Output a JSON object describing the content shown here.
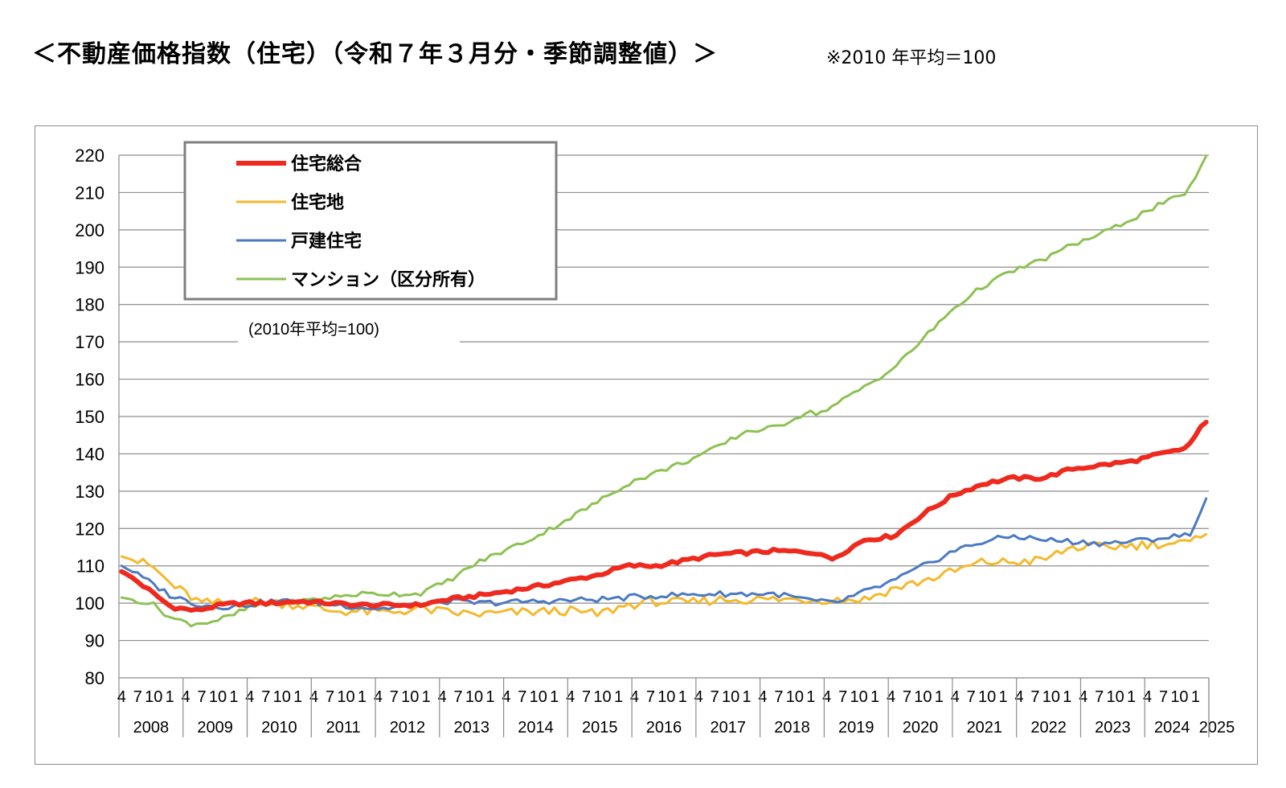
{
  "title": "＜不動産価格指数（住宅）（令和７年３月分・季節調整値）＞",
  "note": "※2010 年平均＝100",
  "chart_data": {
    "type": "line",
    "ylim": [
      80,
      220
    ],
    "yticks": [
      80,
      90,
      100,
      110,
      120,
      130,
      140,
      150,
      160,
      170,
      180,
      190,
      200,
      210,
      220
    ],
    "annotation": "(2010年平均=100)",
    "grid": true,
    "legend_position": "top-left",
    "month_tick_labels": [
      "4",
      "7",
      "10",
      "1"
    ],
    "years": [
      "2008",
      "2009",
      "2010",
      "2011",
      "2012",
      "2013",
      "2014",
      "2015",
      "2016",
      "2017",
      "2018",
      "2019",
      "2020",
      "2021",
      "2022",
      "2023",
      "2024",
      "2025"
    ],
    "period": {
      "start": "2008-04",
      "end": "2025-03",
      "frequency": "monthly"
    },
    "series": [
      {
        "name": "住宅総合",
        "color": "#ee2a1e",
        "width": 6,
        "anchors": [
          [
            0,
            108.5
          ],
          [
            2,
            107
          ],
          [
            6,
            103
          ],
          [
            10,
            99
          ],
          [
            15,
            98
          ],
          [
            20,
            99.5
          ],
          [
            24,
            100
          ],
          [
            30,
            100
          ],
          [
            36,
            100.5
          ],
          [
            48,
            99.5
          ],
          [
            60,
            99.5
          ],
          [
            66,
            101
          ],
          [
            72,
            102
          ],
          [
            84,
            104.5
          ],
          [
            96,
            107.5
          ],
          [
            102,
            110
          ],
          [
            108,
            110
          ],
          [
            120,
            113
          ],
          [
            132,
            114
          ],
          [
            141,
            113.5
          ],
          [
            143,
            111.5
          ],
          [
            150,
            117
          ],
          [
            156,
            118
          ],
          [
            162,
            124
          ],
          [
            168,
            129
          ],
          [
            174,
            132
          ],
          [
            180,
            133.5
          ],
          [
            186,
            133.5
          ],
          [
            192,
            136
          ],
          [
            198,
            137
          ],
          [
            204,
            138
          ],
          [
            210,
            140
          ],
          [
            214,
            141
          ],
          [
            216,
            143
          ],
          [
            218,
            147.5
          ],
          [
            219,
            148.5
          ]
        ],
        "noise": 0.5
      },
      {
        "name": "住宅地",
        "color": "#f5b82a",
        "width": 3,
        "anchors": [
          [
            0,
            112.5
          ],
          [
            6,
            110
          ],
          [
            10,
            105
          ],
          [
            16,
            100
          ],
          [
            22,
            100
          ],
          [
            28,
            100.5
          ],
          [
            36,
            99.5
          ],
          [
            42,
            98
          ],
          [
            54,
            97.5
          ],
          [
            60,
            98.5
          ],
          [
            66,
            97.5
          ],
          [
            72,
            97
          ],
          [
            80,
            97.5
          ],
          [
            90,
            98
          ],
          [
            96,
            97
          ],
          [
            102,
            99.5
          ],
          [
            108,
            100.5
          ],
          [
            114,
            100
          ],
          [
            120,
            101
          ],
          [
            132,
            101
          ],
          [
            141,
            101
          ],
          [
            150,
            101
          ],
          [
            156,
            104
          ],
          [
            162,
            106
          ],
          [
            168,
            108.5
          ],
          [
            174,
            111
          ],
          [
            180,
            111
          ],
          [
            186,
            111.5
          ],
          [
            192,
            115
          ],
          [
            198,
            115
          ],
          [
            204,
            115.5
          ],
          [
            210,
            116
          ],
          [
            216,
            116
          ],
          [
            219,
            118.5
          ]
        ],
        "noise": 1.3
      },
      {
        "name": "戸建住宅",
        "color": "#4a7ac2",
        "width": 3,
        "anchors": [
          [
            0,
            110
          ],
          [
            4,
            107
          ],
          [
            10,
            102
          ],
          [
            16,
            99.5
          ],
          [
            22,
            99
          ],
          [
            30,
            100.5
          ],
          [
            36,
            100.5
          ],
          [
            44,
            99.5
          ],
          [
            52,
            98.5
          ],
          [
            60,
            99.5
          ],
          [
            66,
            100.5
          ],
          [
            72,
            100
          ],
          [
            84,
            100.5
          ],
          [
            96,
            101
          ],
          [
            108,
            102
          ],
          [
            120,
            102.5
          ],
          [
            132,
            102.5
          ],
          [
            140,
            100.5
          ],
          [
            144,
            100
          ],
          [
            150,
            103
          ],
          [
            156,
            106
          ],
          [
            162,
            110
          ],
          [
            168,
            114
          ],
          [
            174,
            116.5
          ],
          [
            180,
            118
          ],
          [
            186,
            117
          ],
          [
            192,
            116.5
          ],
          [
            198,
            116
          ],
          [
            204,
            116.5
          ],
          [
            210,
            117.5
          ],
          [
            214,
            118
          ],
          [
            216,
            119
          ],
          [
            217,
            121.5
          ],
          [
            219,
            128
          ]
        ],
        "noise": 0.8
      },
      {
        "name": "マンション（区分所有）",
        "color": "#8cc152",
        "width": 3,
        "anchors": [
          [
            0,
            101.5
          ],
          [
            6,
            100
          ],
          [
            10,
            96
          ],
          [
            14,
            94.5
          ],
          [
            18,
            95
          ],
          [
            22,
            96.5
          ],
          [
            26,
            99
          ],
          [
            36,
            100.5
          ],
          [
            48,
            102.5
          ],
          [
            60,
            102.5
          ],
          [
            66,
            106
          ],
          [
            72,
            111
          ],
          [
            84,
            118
          ],
          [
            96,
            127
          ],
          [
            102,
            132
          ],
          [
            108,
            135
          ],
          [
            114,
            138
          ],
          [
            120,
            141.5
          ],
          [
            126,
            146
          ],
          [
            132,
            147
          ],
          [
            138,
            151
          ],
          [
            141,
            151
          ],
          [
            144,
            153
          ],
          [
            150,
            158
          ],
          [
            156,
            163
          ],
          [
            162,
            171
          ],
          [
            168,
            179
          ],
          [
            174,
            185
          ],
          [
            180,
            189
          ],
          [
            186,
            192
          ],
          [
            192,
            196
          ],
          [
            198,
            199
          ],
          [
            204,
            203
          ],
          [
            210,
            207
          ],
          [
            214,
            209
          ],
          [
            216,
            212
          ],
          [
            219,
            219.8
          ]
        ],
        "noise": 0.7
      }
    ]
  }
}
